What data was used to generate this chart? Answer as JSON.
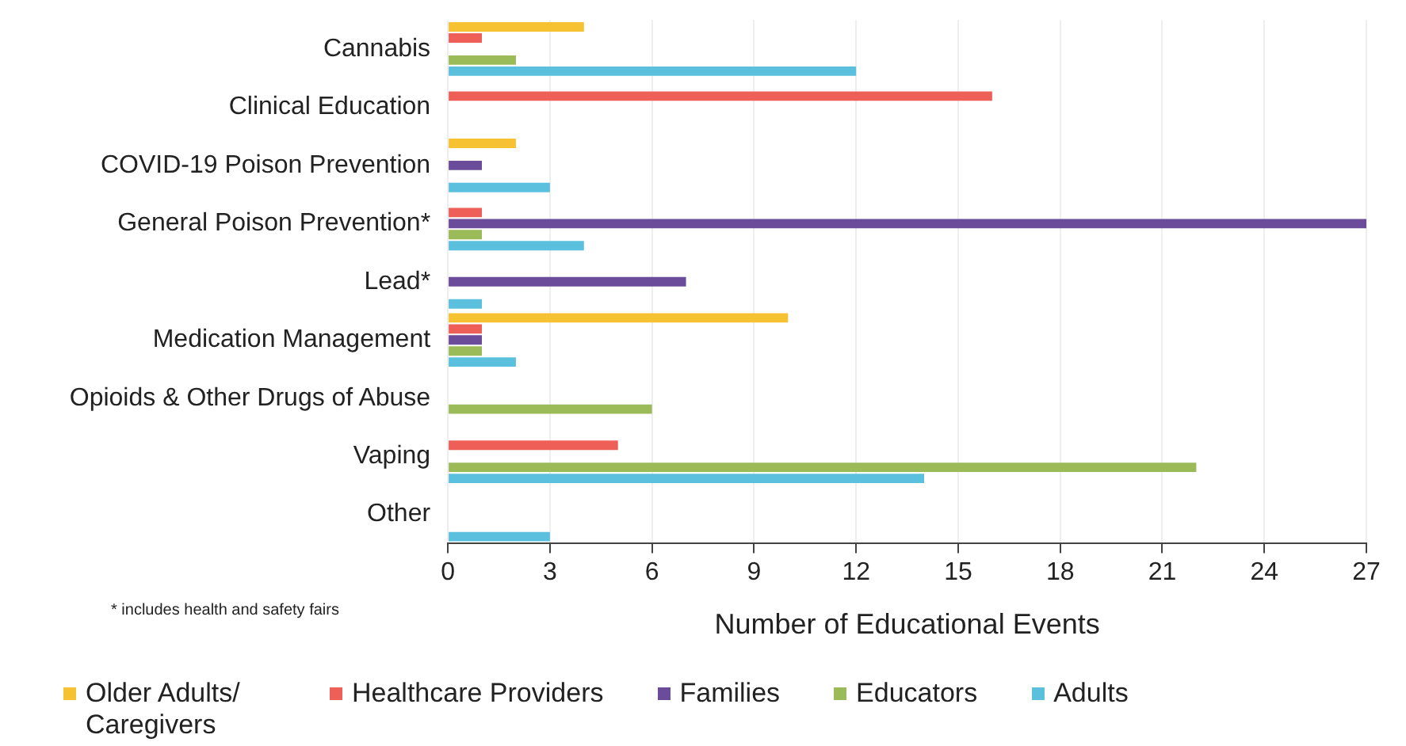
{
  "chart_data": {
    "type": "bar",
    "orientation": "horizontal",
    "xlabel": "Number of Educational Events",
    "categories": [
      "Cannabis",
      "Clinical Education",
      "COVID-19 Poison Prevention",
      "General Poison Prevention*",
      "Lead*",
      "Medication Management",
      "Opioids & Other Drugs of Abuse",
      "Vaping",
      "Other"
    ],
    "series": [
      {
        "name": "Older Adults/ Caregivers",
        "color": "#f7c231",
        "values": [
          4,
          0,
          2,
          0,
          0,
          10,
          0,
          0,
          0
        ]
      },
      {
        "name": "Healthcare Providers",
        "color": "#ee5f57",
        "values": [
          1,
          16,
          0,
          1,
          0,
          1,
          0,
          5,
          0
        ]
      },
      {
        "name": "Families",
        "color": "#6b4c9a",
        "values": [
          0,
          0,
          1,
          27,
          7,
          1,
          0,
          0,
          0
        ]
      },
      {
        "name": "Educators",
        "color": "#9bbb59",
        "values": [
          2,
          0,
          0,
          1,
          0,
          1,
          6,
          22,
          0
        ]
      },
      {
        "name": "Adults",
        "color": "#5bc0de",
        "values": [
          12,
          0,
          3,
          4,
          1,
          2,
          0,
          14,
          3
        ]
      }
    ],
    "xlim": [
      0,
      27
    ],
    "xticks": [
      0,
      3,
      6,
      9,
      12,
      15,
      18,
      21,
      24,
      27
    ],
    "grid": "x",
    "legend": "bottom",
    "annotations": [
      "* includes health and safety fairs"
    ]
  }
}
